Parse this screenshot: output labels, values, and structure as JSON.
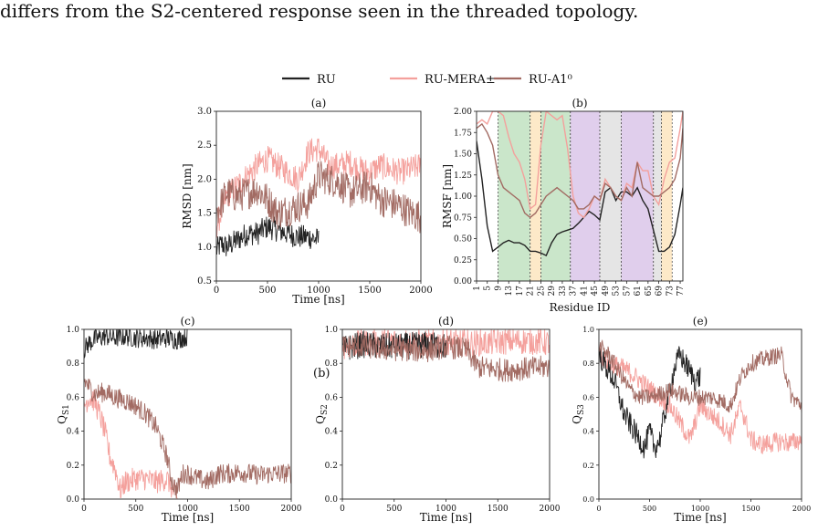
{
  "caption": "differs from the S2-centered response seen in the threaded topology.",
  "legend": [
    {
      "label": "RU",
      "color": "#222222"
    },
    {
      "label": "RU-MERA±",
      "color": "#f4a09c"
    },
    {
      "label": "RU-A1⁰",
      "color": "#a26b63"
    }
  ],
  "stray_label": "(b)",
  "chart_data": [
    {
      "panel": "(a)",
      "type": "line",
      "xlabel": "Time [ns]",
      "ylabel": "RMSD [nm]",
      "xlim": [
        0,
        2000
      ],
      "ylim": [
        0.5,
        3.0
      ],
      "xticks": [
        0,
        500,
        1000,
        1500,
        2000
      ],
      "yticks": [
        0.5,
        1.0,
        1.5,
        2.0,
        2.5,
        3.0
      ],
      "series": [
        {
          "name": "RU",
          "color": "#222222",
          "noise": 0.18,
          "x": [
            0,
            50,
            100,
            200,
            300,
            400,
            500,
            600,
            700,
            800,
            900,
            1000
          ],
          "y": [
            0.95,
            1.05,
            1.0,
            1.1,
            1.2,
            1.2,
            1.3,
            1.25,
            1.2,
            1.15,
            1.15,
            1.1
          ]
        },
        {
          "name": "RU-MERA±",
          "color": "#f4a09c",
          "noise": 0.2,
          "x": [
            0,
            100,
            200,
            300,
            400,
            500,
            600,
            700,
            800,
            900,
            1000,
            1100,
            1200,
            1300,
            1400,
            1500,
            1600,
            1700,
            1800,
            1900,
            2000
          ],
          "y": [
            1.3,
            1.75,
            1.9,
            2.05,
            2.2,
            2.3,
            2.2,
            2.1,
            2.0,
            2.4,
            2.45,
            2.2,
            2.2,
            2.25,
            2.15,
            2.1,
            2.2,
            2.15,
            2.1,
            2.15,
            2.2
          ]
        },
        {
          "name": "RU-A1⁰",
          "color": "#a26b63",
          "noise": 0.25,
          "x": [
            0,
            100,
            200,
            300,
            400,
            500,
            600,
            700,
            800,
            900,
            1000,
            1100,
            1200,
            1300,
            1400,
            1500,
            1600,
            1700,
            1800,
            1900,
            2000
          ],
          "y": [
            1.5,
            1.8,
            1.75,
            1.8,
            1.85,
            1.7,
            1.5,
            1.55,
            1.6,
            1.65,
            2.05,
            2.0,
            1.95,
            1.8,
            1.85,
            1.9,
            1.7,
            1.65,
            1.6,
            1.5,
            1.45
          ]
        }
      ]
    },
    {
      "panel": "(b)",
      "type": "line",
      "xlabel": "Residue ID",
      "ylabel": "RMSF [nm]",
      "xlim": [
        1,
        78
      ],
      "ylim": [
        0,
        2.0
      ],
      "xticks": [
        1,
        5,
        9,
        13,
        17,
        21,
        25,
        29,
        33,
        37,
        41,
        45,
        49,
        53,
        57,
        61,
        65,
        69,
        73,
        77
      ],
      "yticks": [
        0.0,
        0.25,
        0.5,
        0.75,
        1.0,
        1.25,
        1.5,
        1.75,
        2.0
      ],
      "bands": [
        {
          "from": 9,
          "to": 21,
          "color": "#9fd19f"
        },
        {
          "from": 21,
          "to": 25,
          "color": "#fbd79a"
        },
        {
          "from": 25,
          "to": 36,
          "color": "#9fd19f"
        },
        {
          "from": 36,
          "to": 47,
          "color": "#c7a5dc"
        },
        {
          "from": 47,
          "to": 55,
          "color": "#cfcfcf"
        },
        {
          "from": 55,
          "to": 67,
          "color": "#c7a5dc"
        },
        {
          "from": 67,
          "to": 70,
          "color": "#cfcfcf"
        },
        {
          "from": 70,
          "to": 74,
          "color": "#fbd79a"
        }
      ],
      "series": [
        {
          "name": "RU",
          "color": "#222222",
          "x": [
            1,
            3,
            5,
            7,
            9,
            11,
            13,
            15,
            17,
            19,
            21,
            23,
            25,
            27,
            29,
            31,
            33,
            35,
            37,
            39,
            41,
            43,
            45,
            47,
            49,
            51,
            53,
            55,
            57,
            59,
            61,
            63,
            65,
            67,
            69,
            71,
            73,
            75,
            77,
            78
          ],
          "y": [
            1.65,
            1.2,
            0.65,
            0.35,
            0.4,
            0.45,
            0.48,
            0.45,
            0.45,
            0.42,
            0.35,
            0.35,
            0.33,
            0.3,
            0.45,
            0.55,
            0.58,
            0.6,
            0.62,
            0.68,
            0.75,
            0.82,
            0.78,
            0.72,
            1.05,
            1.1,
            0.95,
            1.05,
            1.05,
            1.0,
            1.1,
            0.95,
            0.85,
            0.6,
            0.35,
            0.35,
            0.4,
            0.55,
            0.9,
            1.1
          ]
        },
        {
          "name": "RU-MERA±",
          "color": "#f4a09c",
          "x": [
            1,
            3,
            5,
            7,
            9,
            11,
            13,
            15,
            17,
            19,
            21,
            23,
            25,
            27,
            29,
            31,
            33,
            35,
            37,
            39,
            41,
            43,
            45,
            47,
            49,
            51,
            53,
            55,
            57,
            59,
            61,
            63,
            65,
            67,
            69,
            71,
            73,
            75,
            77,
            78
          ],
          "y": [
            1.85,
            1.9,
            1.85,
            2.0,
            2.0,
            1.95,
            1.7,
            1.5,
            1.4,
            1.2,
            0.85,
            0.9,
            1.6,
            2.0,
            1.95,
            1.9,
            1.95,
            1.55,
            1.0,
            0.8,
            0.75,
            0.85,
            1.0,
            0.95,
            1.2,
            1.1,
            1.0,
            0.95,
            1.15,
            1.1,
            1.4,
            1.3,
            1.3,
            1.0,
            0.9,
            1.2,
            1.4,
            1.45,
            1.8,
            2.0
          ]
        },
        {
          "name": "RU-A1⁰",
          "color": "#a26b63",
          "x": [
            1,
            3,
            5,
            7,
            9,
            11,
            13,
            15,
            17,
            19,
            21,
            23,
            25,
            27,
            29,
            31,
            33,
            35,
            37,
            39,
            41,
            43,
            45,
            47,
            49,
            51,
            53,
            55,
            57,
            59,
            61,
            63,
            65,
            67,
            69,
            71,
            73,
            75,
            77,
            78
          ],
          "y": [
            1.8,
            1.85,
            1.75,
            1.6,
            1.25,
            1.1,
            1.05,
            1.0,
            0.95,
            0.8,
            0.75,
            0.8,
            0.9,
            1.0,
            1.05,
            1.1,
            1.05,
            1.0,
            0.95,
            0.85,
            0.85,
            0.9,
            1.0,
            0.95,
            1.15,
            1.1,
            1.0,
            0.95,
            1.1,
            1.0,
            1.4,
            1.1,
            1.05,
            1.0,
            1.0,
            1.05,
            1.1,
            1.2,
            1.45,
            1.8
          ]
        }
      ]
    },
    {
      "panel": "(c)",
      "type": "line",
      "xlabel": "Time [ns]",
      "ylabel": "Q_S1",
      "xlim": [
        0,
        2000
      ],
      "ylim": [
        0.0,
        1.0
      ],
      "xticks": [
        0,
        500,
        1000,
        1500,
        2000
      ],
      "yticks": [
        0.0,
        0.2,
        0.4,
        0.6,
        0.8,
        1.0
      ],
      "series": [
        {
          "name": "RU",
          "color": "#222222",
          "noise": 0.06,
          "x": [
            0,
            50,
            100,
            200,
            300,
            400,
            500,
            600,
            700,
            800,
            900,
            1000
          ],
          "y": [
            0.88,
            0.92,
            0.94,
            0.96,
            0.95,
            0.96,
            0.95,
            0.95,
            0.94,
            0.95,
            0.94,
            0.96
          ]
        },
        {
          "name": "RU-MERA±",
          "color": "#f4a09c",
          "noise": 0.07,
          "x": [
            0,
            50,
            100,
            150,
            200,
            250,
            300,
            350,
            400,
            500,
            600,
            700,
            800,
            900
          ],
          "y": [
            0.55,
            0.6,
            0.58,
            0.5,
            0.4,
            0.25,
            0.18,
            0.05,
            0.1,
            0.12,
            0.12,
            0.1,
            0.12,
            0.0
          ]
        },
        {
          "name": "RU-A1⁰",
          "color": "#a26b63",
          "noise": 0.06,
          "x": [
            0,
            100,
            200,
            300,
            400,
            500,
            600,
            700,
            800,
            850,
            900,
            950,
            1000,
            1100,
            1200,
            1300,
            1400,
            1500,
            1600,
            1700,
            1800,
            1900,
            2000
          ],
          "y": [
            0.7,
            0.62,
            0.63,
            0.6,
            0.58,
            0.55,
            0.5,
            0.42,
            0.25,
            0.1,
            0.05,
            0.15,
            0.15,
            0.12,
            0.1,
            0.15,
            0.15,
            0.16,
            0.15,
            0.14,
            0.15,
            0.15,
            0.15
          ]
        }
      ]
    },
    {
      "panel": "(d)",
      "type": "line",
      "xlabel": "Time [ns]",
      "ylabel": "Q_S2",
      "xlim": [
        0,
        2000
      ],
      "ylim": [
        0.0,
        1.0
      ],
      "xticks": [
        0,
        500,
        1000,
        1500,
        2000
      ],
      "yticks": [
        0.0,
        0.2,
        0.4,
        0.6,
        0.8,
        1.0
      ],
      "series": [
        {
          "name": "RU-MERA±",
          "color": "#f4a09c",
          "noise": 0.08,
          "x": [
            0,
            200,
            400,
            600,
            800,
            1000,
            1200,
            1400,
            1600,
            1800,
            2000
          ],
          "y": [
            0.9,
            0.92,
            0.93,
            0.93,
            0.92,
            0.93,
            0.92,
            0.92,
            0.93,
            0.93,
            0.92
          ]
        },
        {
          "name": "RU",
          "color": "#222222",
          "noise": 0.08,
          "x": [
            0,
            100,
            200,
            400,
            600,
            800,
            1000
          ],
          "y": [
            0.88,
            0.9,
            0.91,
            0.9,
            0.9,
            0.91,
            0.9
          ]
        },
        {
          "name": "RU-A1⁰",
          "color": "#a26b63",
          "noise": 0.07,
          "x": [
            0,
            200,
            400,
            600,
            800,
            1000,
            1200,
            1300,
            1400,
            1600,
            1800,
            2000
          ],
          "y": [
            0.9,
            0.9,
            0.88,
            0.88,
            0.87,
            0.9,
            0.88,
            0.78,
            0.77,
            0.76,
            0.77,
            0.78
          ]
        }
      ]
    },
    {
      "panel": "(e)",
      "type": "line",
      "xlabel": "Time [ns]",
      "ylabel": "Q_S3",
      "xlim": [
        0,
        2000
      ],
      "ylim": [
        0.0,
        1.0
      ],
      "xticks": [
        0,
        500,
        1000,
        1500,
        2000
      ],
      "yticks": [
        0.0,
        0.2,
        0.4,
        0.6,
        0.8,
        1.0
      ],
      "series": [
        {
          "name": "RU-MERA±",
          "color": "#f4a09c",
          "noise": 0.06,
          "x": [
            0,
            100,
            200,
            300,
            400,
            500,
            600,
            700,
            800,
            900,
            1000,
            1100,
            1200,
            1300,
            1400,
            1500,
            1600,
            1700,
            1800,
            1900,
            2000
          ],
          "y": [
            0.85,
            0.8,
            0.78,
            0.75,
            0.7,
            0.65,
            0.6,
            0.55,
            0.45,
            0.35,
            0.55,
            0.5,
            0.45,
            0.38,
            0.55,
            0.35,
            0.32,
            0.33,
            0.34,
            0.33,
            0.35
          ]
        },
        {
          "name": "RU",
          "color": "#222222",
          "noise": 0.07,
          "x": [
            0,
            50,
            100,
            150,
            200,
            250,
            300,
            350,
            400,
            450,
            500,
            550,
            600,
            650,
            700,
            750,
            800,
            850,
            900,
            950,
            1000
          ],
          "y": [
            0.85,
            0.8,
            0.75,
            0.7,
            0.6,
            0.5,
            0.45,
            0.4,
            0.35,
            0.3,
            0.4,
            0.3,
            0.35,
            0.5,
            0.65,
            0.78,
            0.85,
            0.8,
            0.75,
            0.7,
            0.72
          ]
        },
        {
          "name": "RU-A1⁰",
          "color": "#a26b63",
          "noise": 0.05,
          "x": [
            0,
            100,
            200,
            300,
            400,
            500,
            600,
            700,
            800,
            900,
            1000,
            1100,
            1200,
            1300,
            1400,
            1500,
            1600,
            1700,
            1800,
            1900,
            2000
          ],
          "y": [
            0.9,
            0.85,
            0.75,
            0.65,
            0.6,
            0.6,
            0.62,
            0.64,
            0.62,
            0.6,
            0.6,
            0.6,
            0.58,
            0.55,
            0.72,
            0.8,
            0.82,
            0.84,
            0.85,
            0.6,
            0.55
          ]
        }
      ]
    }
  ]
}
